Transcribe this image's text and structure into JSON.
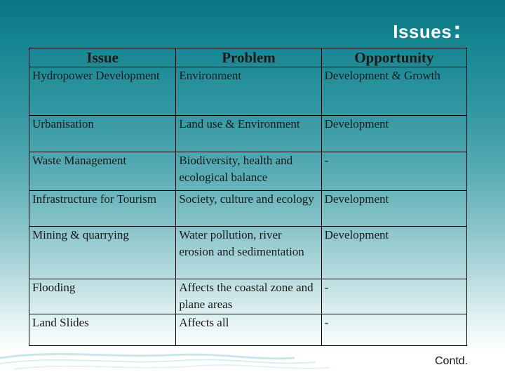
{
  "title": "Issues",
  "title_punct": ":",
  "table": {
    "headers": [
      "Issue",
      "Problem",
      "Opportunity"
    ],
    "rows": [
      [
        "Hydropower Development",
        "Environment",
        "Development & Growth"
      ],
      [
        "Urbanisation",
        "Land use & Environment",
        "Development"
      ],
      [
        "Waste Management",
        "Biodiversity, health and ecological balance",
        "-"
      ],
      [
        "Infrastructure for Tourism",
        "Society, culture and ecology",
        "Development"
      ],
      [
        "Mining & quarrying",
        "Water pollution, river erosion  and sedimentation",
        "Development"
      ],
      [
        "Flooding",
        "Affects the coastal zone and plane areas",
        "-"
      ],
      [
        "Land Slides",
        "Affects  all",
        "-"
      ]
    ]
  },
  "footer": {
    "contd": "Contd."
  },
  "colors": {
    "background_top": "#0a7584",
    "background_bottom": "#ffffff"
  }
}
